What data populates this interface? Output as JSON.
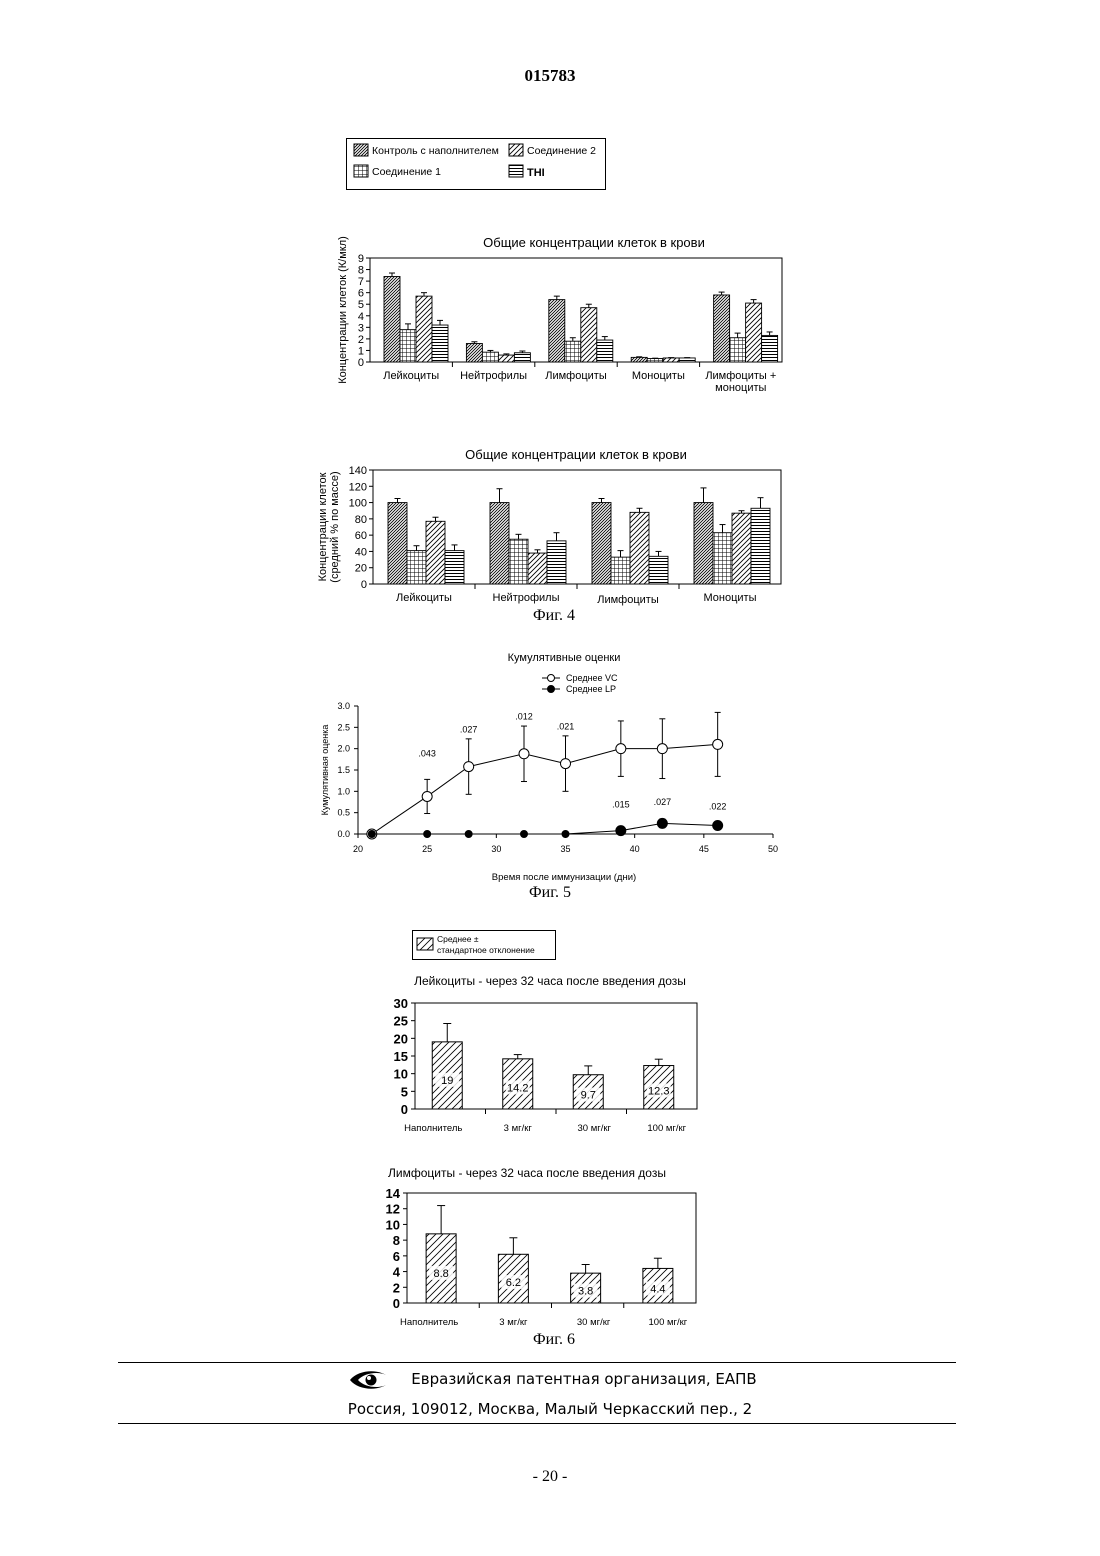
{
  "doc": {
    "number": "015783",
    "page": "- 20 -",
    "fig4_caption": "Фиг. 4",
    "fig5_caption": "Фиг. 5",
    "fig6_caption": "Фиг. 6"
  },
  "footer": {
    "org": "Евразийская патентная организация, ЕАПВ",
    "address": "Россия, 109012, Москва, Малый Черкасский пер., 2"
  },
  "fig4_legend": [
    "Контроль с наполнителем",
    "Соединение 2",
    "Соединение 1",
    "THI"
  ],
  "fig6_legend": [
    "Среднее ±",
    "стандартное отклонение"
  ],
  "chart_data": [
    {
      "type": "bar",
      "title": "Общие концентрации клеток в крови",
      "ylabel": "Концентрации клеток (К/мкл)",
      "ylim": [
        0,
        9
      ],
      "yticks": [
        0,
        1,
        2,
        3,
        4,
        5,
        6,
        7,
        8,
        9
      ],
      "categories": [
        "Лейкоциты",
        "Нейтрофилы",
        "Лимфоциты",
        "Моноциты",
        "Лимфоциты + моноциты"
      ],
      "series": [
        {
          "name": "Контроль с наполнителем",
          "values": [
            7.4,
            1.6,
            5.4,
            0.4,
            5.8
          ],
          "err": [
            0.3,
            0.15,
            0.3,
            0.05,
            0.25
          ]
        },
        {
          "name": "Соединение 1",
          "values": [
            2.8,
            0.85,
            1.8,
            0.3,
            2.1
          ],
          "err": [
            0.5,
            0.15,
            0.3,
            0.03,
            0.4
          ]
        },
        {
          "name": "Соединение 2",
          "values": [
            5.7,
            0.6,
            4.7,
            0.35,
            5.1
          ],
          "err": [
            0.3,
            0.1,
            0.3,
            0.03,
            0.3
          ]
        },
        {
          "name": "THI",
          "values": [
            3.2,
            0.8,
            1.9,
            0.35,
            2.3
          ],
          "err": [
            0.4,
            0.15,
            0.3,
            0.03,
            0.3
          ]
        }
      ]
    },
    {
      "type": "bar",
      "title": "Общие концентрации клеток в крови",
      "ylabel": "Концентрации клеток (средний % по массе)",
      "ylim": [
        0,
        140
      ],
      "yticks": [
        0,
        20,
        40,
        60,
        80,
        100,
        120,
        140
      ],
      "categories": [
        "Лейкоциты",
        "Нейтрофилы",
        "Лимфоциты",
        "Моноциты"
      ],
      "series": [
        {
          "name": "Контроль с наполнителем",
          "values": [
            100,
            100,
            100,
            100
          ],
          "err": [
            5,
            17,
            5,
            18
          ]
        },
        {
          "name": "Соединение 1",
          "values": [
            41,
            55,
            33,
            63
          ],
          "err": [
            6,
            6,
            8,
            10
          ]
        },
        {
          "name": "Соединение 2",
          "values": [
            77,
            38,
            88,
            87
          ],
          "err": [
            5,
            4,
            5,
            3
          ]
        },
        {
          "name": "THI",
          "values": [
            41,
            53,
            34,
            93
          ],
          "err": [
            7,
            10,
            6,
            13
          ]
        }
      ]
    },
    {
      "type": "line",
      "title": "Кумулятивные оценки",
      "xlabel": "Время после иммунизации (дни)",
      "ylabel": "Кумулятивная оценка",
      "xlim": [
        20,
        50
      ],
      "ylim": [
        0,
        3.0
      ],
      "xticks": [
        20,
        25,
        30,
        35,
        40,
        45,
        50
      ],
      "yticks": [
        "0.0",
        "0.5",
        "1.0",
        "1.5",
        "2.0",
        "2.5",
        "3.0"
      ],
      "x": [
        21,
        25,
        28,
        32,
        35,
        39,
        42,
        46
      ],
      "series": [
        {
          "name": "Среднее VC",
          "values": [
            0,
            0.88,
            1.58,
            1.88,
            1.65,
            2.0,
            2.0,
            2.1
          ],
          "err": [
            0,
            0.4,
            0.65,
            0.65,
            0.65,
            0.65,
            0.7,
            0.75
          ]
        },
        {
          "name": "Среднее LP",
          "values": [
            0,
            0,
            0,
            0,
            0,
            0.08,
            0.25,
            0.2
          ],
          "err": [
            0,
            0,
            0,
            0,
            0,
            0.05,
            0.1,
            0.08
          ]
        }
      ],
      "annotations": [
        {
          "x": 25,
          "y": 1.82,
          "text": ".043"
        },
        {
          "x": 28,
          "y": 2.38,
          "text": ".027"
        },
        {
          "x": 32,
          "y": 2.68,
          "text": ".012"
        },
        {
          "x": 35,
          "y": 2.45,
          "text": ".021"
        },
        {
          "x": 39,
          "y": 0.62,
          "text": ".015"
        },
        {
          "x": 42,
          "y": 0.68,
          "text": ".027"
        },
        {
          "x": 46,
          "y": 0.58,
          "text": ".022"
        }
      ]
    },
    {
      "type": "bar",
      "title": "Лейкоциты - через 32 часа после введения дозы",
      "ylim": [
        0,
        30
      ],
      "yticks": [
        0,
        5,
        10,
        15,
        20,
        25,
        30
      ],
      "categories": [
        "Наполнитель",
        "3 мг/кг",
        "30 мг/кг",
        "100 мг/кг"
      ],
      "values": [
        19,
        14.2,
        9.7,
        12.3
      ],
      "labels": [
        "19",
        "14.2",
        "9.7",
        "12.3"
      ],
      "err": [
        5.2,
        1.2,
        2.5,
        1.8
      ]
    },
    {
      "type": "bar",
      "title": "Лимфоциты - через 32 часа после введения дозы",
      "ylim": [
        0,
        14
      ],
      "yticks": [
        0,
        2,
        4,
        6,
        8,
        10,
        12,
        14
      ],
      "categories": [
        "Наполнитель",
        "3 мг/кг",
        "30 мг/кг",
        "100 мг/кг"
      ],
      "values": [
        8.8,
        6.2,
        3.8,
        4.4
      ],
      "labels": [
        "8.8",
        "6.2",
        "3.8",
        "4.4"
      ],
      "err": [
        3.6,
        2.1,
        1.1,
        1.3
      ]
    }
  ]
}
